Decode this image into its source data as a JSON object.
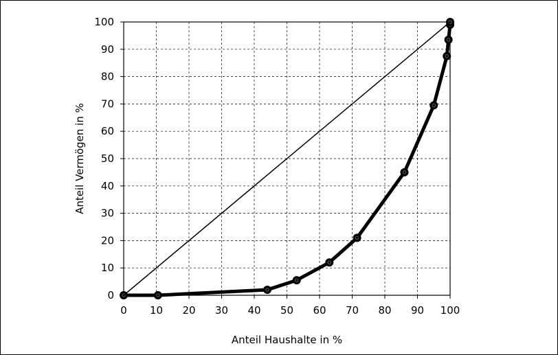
{
  "chart_data": {
    "type": "line",
    "xlabel": "Anteil Haushalte in %",
    "ylabel": "Anteil Vermögen in %",
    "xlim": [
      0,
      100
    ],
    "ylim": [
      0,
      100
    ],
    "x_ticks": [
      0,
      10,
      20,
      30,
      40,
      50,
      60,
      70,
      80,
      90,
      100
    ],
    "y_ticks": [
      0,
      10,
      20,
      30,
      40,
      50,
      60,
      70,
      80,
      90,
      100
    ],
    "grid": true,
    "legend": "none",
    "series": [
      {
        "style": "thick-line-with-markers",
        "color": "#000000",
        "x": [
          0,
          10.5,
          44,
          53,
          63,
          71.5,
          86,
          95,
          99,
          99.5,
          100,
          100
        ],
        "y": [
          0,
          0,
          2,
          5.5,
          12,
          21,
          45,
          69.5,
          87.5,
          93.5,
          99,
          100
        ]
      },
      {
        "style": "thin-line",
        "color": "#000000",
        "x": [
          0,
          100
        ],
        "y": [
          0,
          100
        ]
      }
    ]
  }
}
